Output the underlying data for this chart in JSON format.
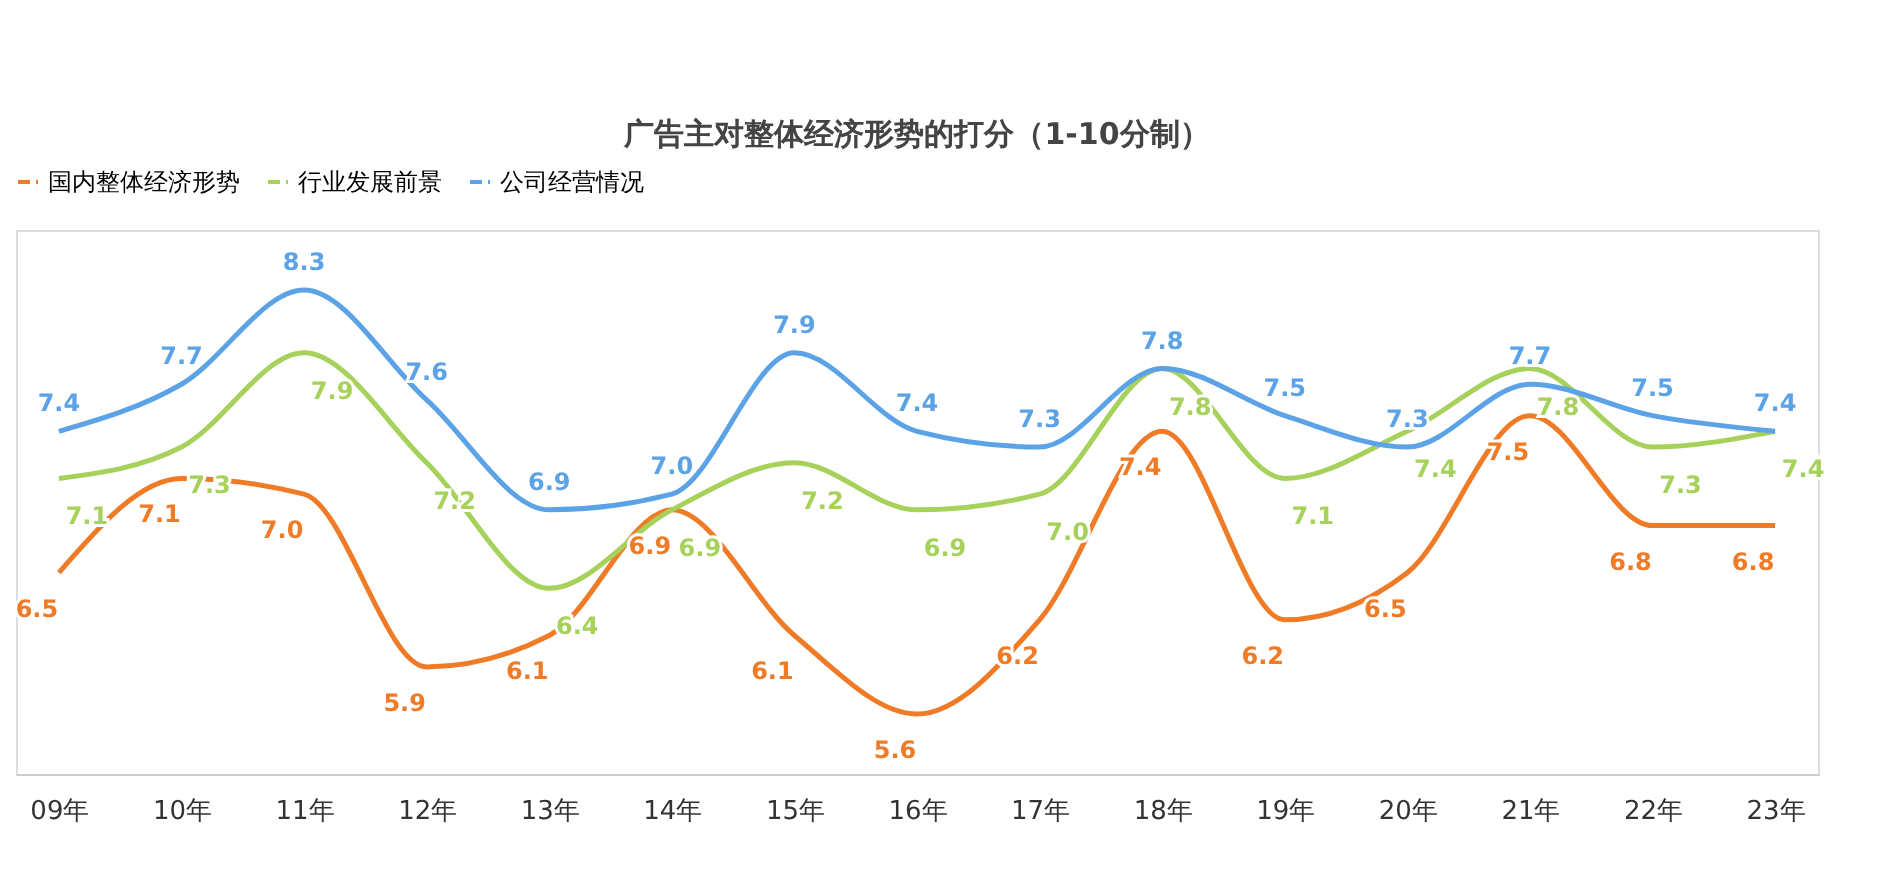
{
  "chart_data": {
    "type": "line",
    "title": "广告主对整体经济形势的打分（1-10分制）",
    "categories": [
      "09年",
      "10年",
      "11年",
      "12年",
      "13年",
      "14年",
      "15年",
      "16年",
      "17年",
      "18年",
      "19年",
      "20年",
      "21年",
      "22年",
      "23年"
    ],
    "series": [
      {
        "name": "国内整体经济形势",
        "color": "#f07b27",
        "values": [
          6.5,
          7.1,
          7.0,
          5.9,
          6.1,
          6.9,
          6.1,
          5.6,
          6.2,
          7.4,
          6.2,
          6.5,
          7.5,
          6.8,
          6.8
        ],
        "value_labels": [
          "6.5",
          "7.1",
          "7.0",
          "5.9",
          "6.1",
          "6.9",
          "6.1",
          "5.6",
          "6.2",
          "7.4",
          "6.2",
          "6.5",
          "7.5",
          "6.8",
          "6.8"
        ]
      },
      {
        "name": "行业发展前景",
        "color": "#a6d15a",
        "values": [
          7.1,
          7.3,
          7.9,
          7.2,
          6.4,
          6.9,
          7.2,
          6.9,
          7.0,
          7.8,
          7.1,
          7.4,
          7.8,
          7.3,
          7.4
        ],
        "value_labels": [
          "7.1",
          "7.3",
          "7.9",
          "7.2",
          "6.4",
          "6.9",
          "7.2",
          "6.9",
          "7.0",
          "7.8",
          "7.1",
          "7.4",
          "7.8",
          "7.3",
          "7.4"
        ]
      },
      {
        "name": "公司经营情况",
        "color": "#5ba3e6",
        "values": [
          7.4,
          7.7,
          8.3,
          7.6,
          6.9,
          7.0,
          7.9,
          7.4,
          7.3,
          7.8,
          7.5,
          7.3,
          7.7,
          7.5,
          7.4
        ],
        "value_labels": [
          "7.4",
          "7.7",
          "8.3",
          "7.6",
          "6.9",
          "7.0",
          "7.9",
          "7.4",
          "7.3",
          "7.8",
          "7.5",
          "7.3",
          "7.7",
          "7.5",
          "7.4"
        ]
      }
    ],
    "legend": "top",
    "grid": false,
    "tick_labels": "x",
    "marker": "none",
    "line_style": "solid"
  }
}
